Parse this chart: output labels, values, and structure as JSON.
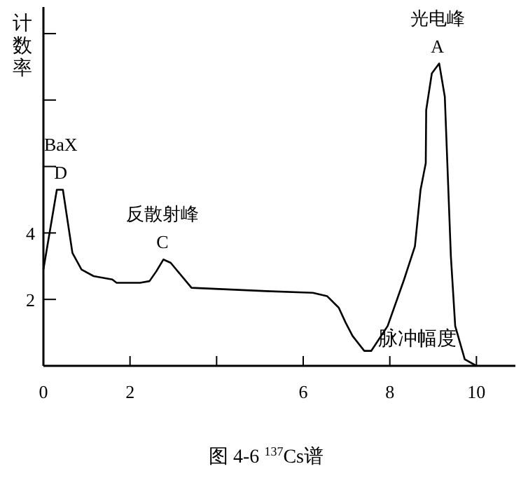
{
  "chart_data": {
    "type": "line",
    "title": "图 4-6 $^{137}$Cs谱",
    "xlabel": "脉冲幅度",
    "ylabel": "计数率",
    "x": [
      0,
      0.31,
      0.45,
      0.67,
      0.88,
      1.16,
      1.59,
      1.69,
      2.23,
      2.45,
      2.61,
      2.77,
      2.94,
      3.42,
      5.15,
      6.22,
      6.55,
      6.82,
      6.98,
      7.14,
      7.41,
      7.57,
      7.95,
      8.33,
      8.58,
      8.71,
      8.83,
      8.84,
      8.97,
      9.14,
      9.27,
      9.41,
      9.51,
      9.73,
      10
    ],
    "series": [
      {
        "color": "#000000",
        "values": [
          2.9,
          5.3,
          5.3,
          3.4,
          2.9,
          2.7,
          2.6,
          2.5,
          2.5,
          2.55,
          2.85,
          3.2,
          3.1,
          2.35,
          2.25,
          2.2,
          2.1,
          1.75,
          1.3,
          0.9,
          0.45,
          0.45,
          1.2,
          2.6,
          3.6,
          5.3,
          6.1,
          7.7,
          8.8,
          9.1,
          8.1,
          3.3,
          1.2,
          0.2,
          0
        ]
      }
    ],
    "xlim": [
      0,
      10.9
    ],
    "ylim": [
      0,
      10.8
    ],
    "xticks": [
      0,
      2,
      {
        "value": 4,
        "label": null
      },
      6,
      8,
      10
    ],
    "yticks": [
      2,
      4,
      {
        "value": 6,
        "label": null
      },
      {
        "value": 8,
        "label": null
      },
      {
        "value": 10,
        "label": null
      }
    ],
    "annotations": [
      {
        "text": "BaX\nD",
        "x": 0.4,
        "y": 5.3
      },
      {
        "text": "反散射峰\nC",
        "x": 2.75,
        "y": 3.2
      },
      {
        "text": "光电峰\nA",
        "x": 9.1,
        "y": 9.1
      }
    ]
  }
}
